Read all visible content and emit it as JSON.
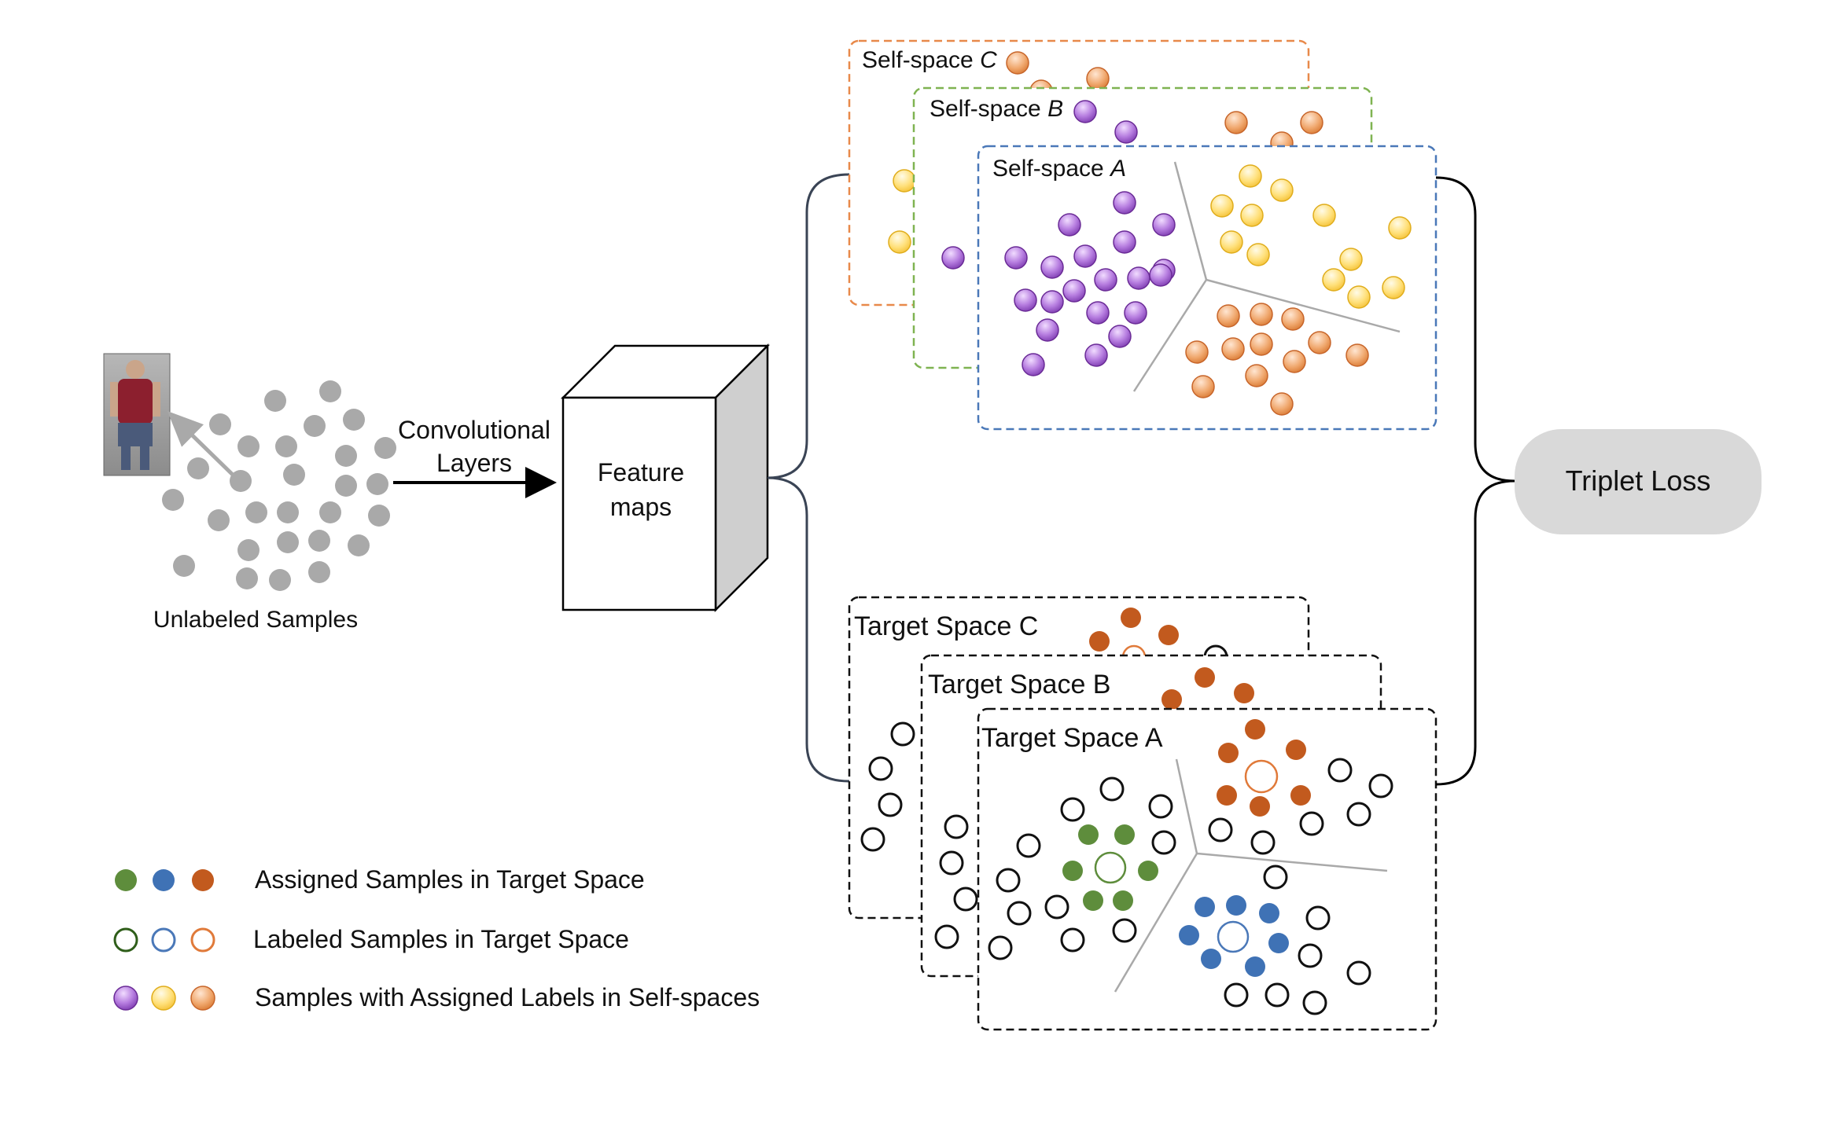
{
  "input": {
    "caption": "Unlabeled Samples",
    "arrow_label_line1": "Convolutional",
    "arrow_label_line2": "Layers"
  },
  "feature_box": {
    "line1": "Feature",
    "line2": "maps"
  },
  "self_spaces": [
    {
      "prefix": "Self-space ",
      "letter": "C",
      "border_color": "#e8894a"
    },
    {
      "prefix": "Self-space ",
      "letter": "B",
      "border_color": "#7fb351"
    },
    {
      "prefix": "Self-space ",
      "letter": "A",
      "border_color": "#4a78b8"
    }
  ],
  "target_spaces": [
    {
      "label": "Target Space C"
    },
    {
      "label": "Target Space B"
    },
    {
      "label": "Target Space A"
    }
  ],
  "loss": {
    "label": "Triplet Loss"
  },
  "legend": [
    {
      "text": "Assigned Samples in Target Space",
      "style": "filled",
      "colors": [
        "#5e8d3c",
        "#3f72b5",
        "#c25a1e"
      ]
    },
    {
      "text": "Labeled Samples in Target Space",
      "style": "ring",
      "colors": [
        "#2f5e1a",
        "#4a78b8",
        "#e07a3a"
      ]
    },
    {
      "text": "Samples with Assigned Labels in Self-spaces",
      "style": "gradient",
      "colors": [
        "purple",
        "yellow",
        "orange"
      ]
    }
  ],
  "colors": {
    "gray_sample": "#a9a9a9",
    "purple": "#8e4fbf",
    "yellow": "#ffd34d",
    "orange": "#e58a45",
    "green": "#5e8d3c",
    "blue": "#3f72b5",
    "brown": "#c25a1e",
    "loss_bg": "#d9d9d9"
  },
  "icons": [
    "person-photo-icon",
    "arrow-right-icon",
    "cube-icon"
  ]
}
